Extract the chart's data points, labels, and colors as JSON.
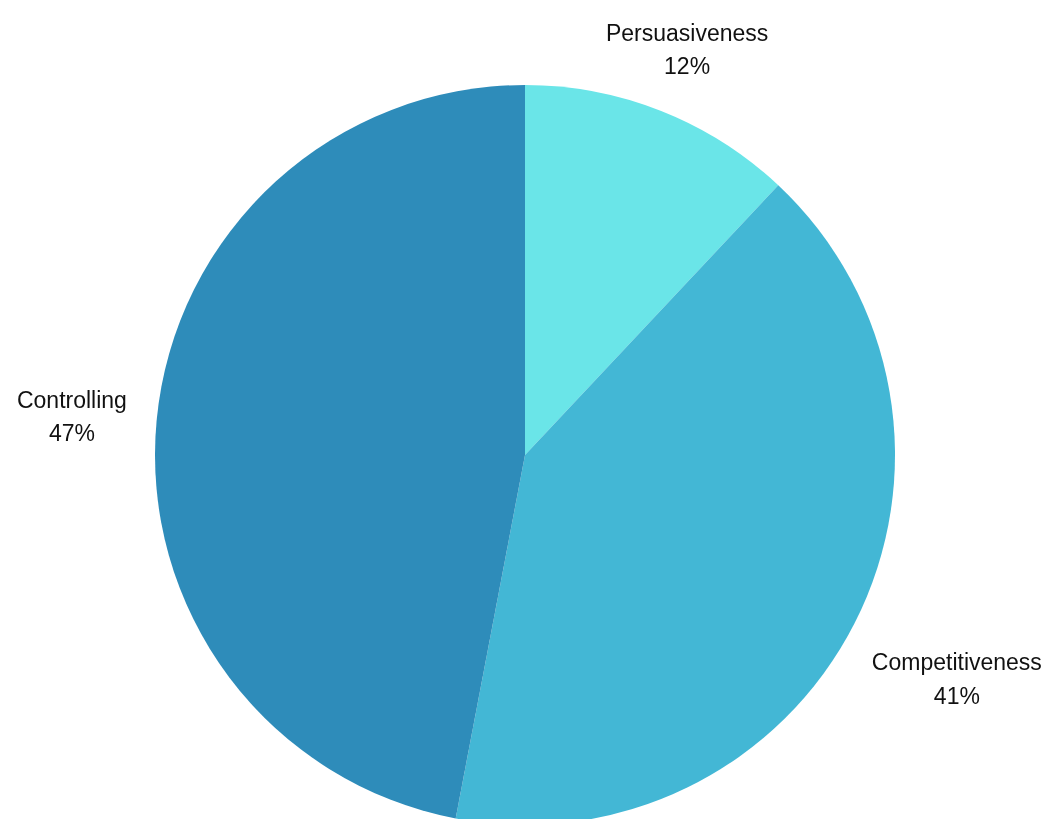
{
  "chart_data": {
    "type": "pie",
    "categories": [
      "Persuasiveness",
      "Competitiveness",
      "Controlling"
    ],
    "values": [
      12,
      41,
      47
    ],
    "value_labels": [
      "12%",
      "41%",
      "47%"
    ],
    "colors": [
      "#6ae5e8",
      "#43b7d5",
      "#2e8cba"
    ]
  }
}
